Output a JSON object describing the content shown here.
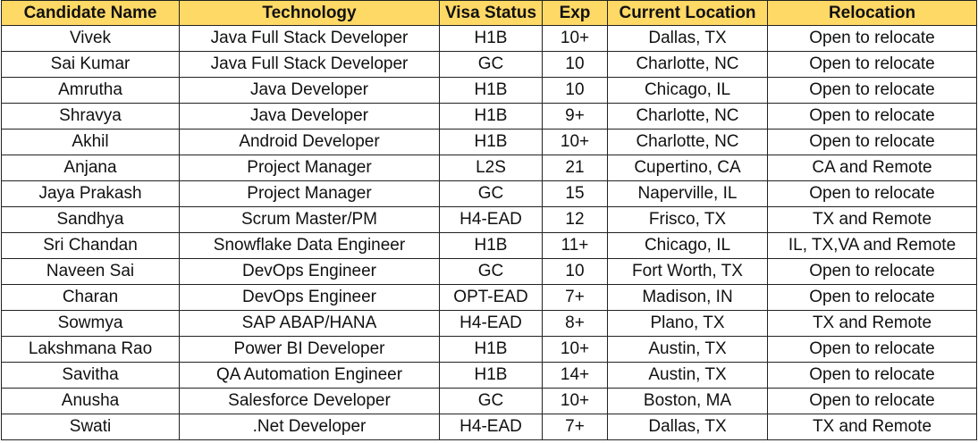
{
  "sheet": {
    "accent_header_bg": "#FFD966",
    "columns": [
      "Candidate Name",
      "Technology",
      "Visa Status",
      "Exp",
      "Current Location",
      "Relocation"
    ],
    "rows": [
      [
        "Vivek",
        "Java Full Stack Developer",
        "H1B",
        "10+",
        "Dallas, TX",
        "Open to relocate"
      ],
      [
        "Sai Kumar",
        "Java Full Stack Developer",
        "GC",
        "10",
        "Charlotte, NC",
        "Open to relocate"
      ],
      [
        "Amrutha",
        "Java Developer",
        "H1B",
        "10",
        "Chicago, IL",
        "Open to relocate"
      ],
      [
        "Shravya",
        "Java Developer",
        "H1B",
        "9+",
        "Charlotte, NC",
        "Open to relocate"
      ],
      [
        "Akhil",
        "Android Developer",
        "H1B",
        "10+",
        "Charlotte, NC",
        "Open to relocate"
      ],
      [
        "Anjana",
        "Project Manager",
        "L2S",
        "21",
        "Cupertino, CA",
        "CA and Remote"
      ],
      [
        "Jaya Prakash",
        "Project Manager",
        "GC",
        "15",
        "Naperville, IL",
        "Open to relocate"
      ],
      [
        "Sandhya",
        "Scrum Master/PM",
        "H4-EAD",
        "12",
        "Frisco, TX",
        "TX and Remote"
      ],
      [
        "Sri Chandan",
        "Snowflake Data Engineer",
        "H1B",
        "11+",
        "Chicago, IL",
        "IL, TX,VA and Remote"
      ],
      [
        "Naveen Sai",
        "DevOps Engineer",
        "GC",
        "10",
        "Fort Worth, TX",
        "Open to relocate"
      ],
      [
        "Charan",
        "DevOps Engineer",
        "OPT-EAD",
        "7+",
        "Madison, IN",
        "Open to relocate"
      ],
      [
        "Sowmya",
        "SAP ABAP/HANA",
        "H4-EAD",
        "8+",
        "Plano, TX",
        "TX and Remote"
      ],
      [
        "Lakshmana Rao",
        "Power BI Developer",
        "H1B",
        "10+",
        "Austin, TX",
        "Open to relocate"
      ],
      [
        "Savitha",
        "QA Automation Engineer",
        "H1B",
        "14+",
        "Austin, TX",
        "Open to relocate"
      ],
      [
        "Anusha",
        "Salesforce Developer",
        "GC",
        "10+",
        "Boston, MA",
        "Open to relocate"
      ],
      [
        "Swati",
        ".Net Developer",
        "H4-EAD",
        "7+",
        "Dallas, TX",
        "TX and Remote"
      ]
    ]
  }
}
